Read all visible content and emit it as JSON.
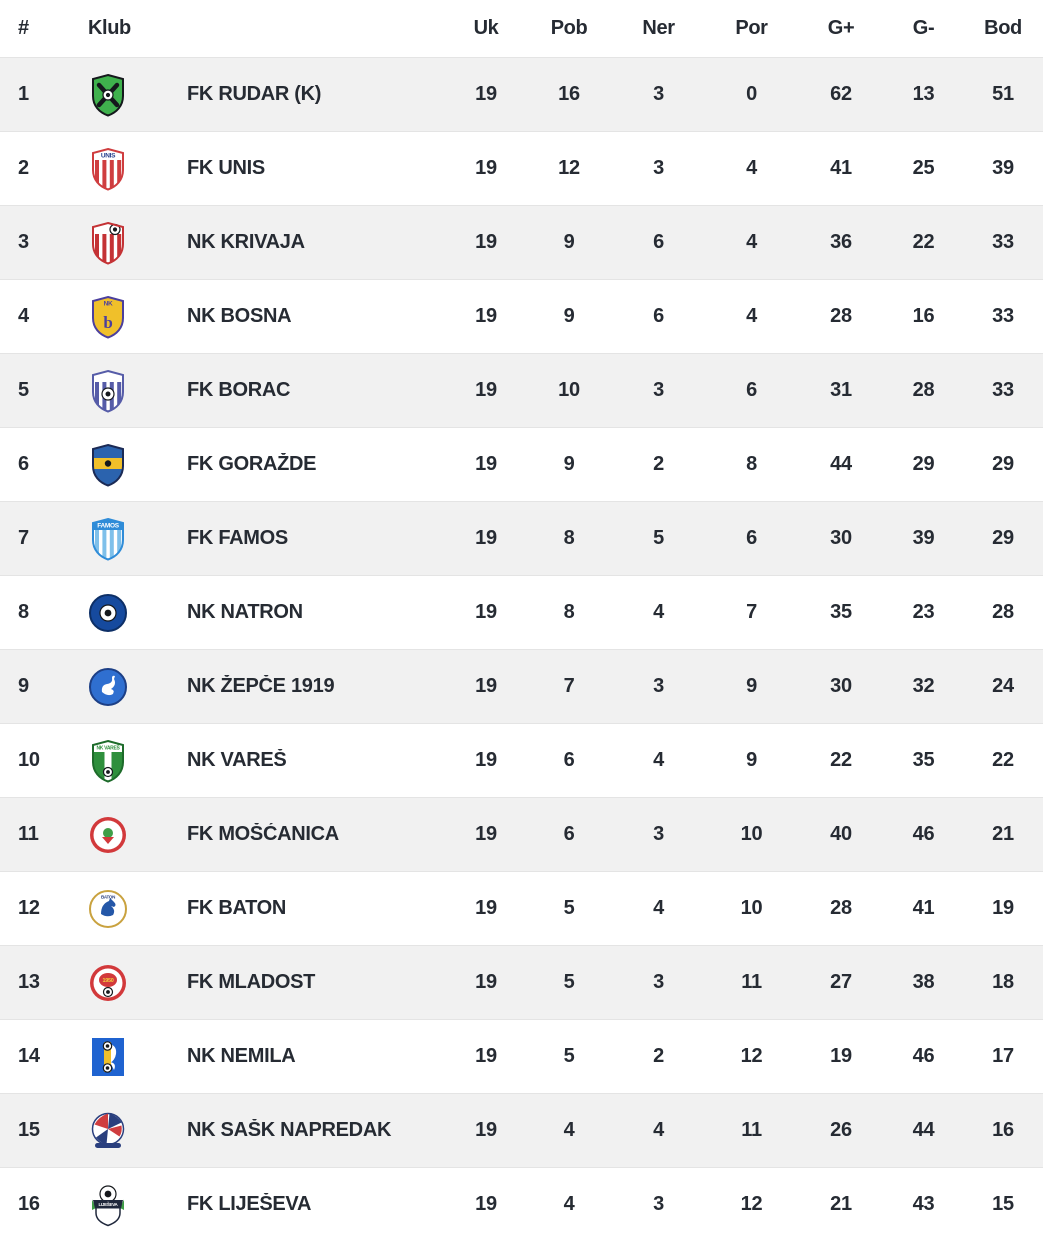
{
  "table": {
    "columns": [
      {
        "key": "rank",
        "label": "#"
      },
      {
        "key": "club",
        "label": "Klub"
      },
      {
        "key": "uk",
        "label": "Uk"
      },
      {
        "key": "pob",
        "label": "Pob"
      },
      {
        "key": "ner",
        "label": "Ner"
      },
      {
        "key": "por",
        "label": "Por"
      },
      {
        "key": "gf",
        "label": "G+"
      },
      {
        "key": "ga",
        "label": "G-"
      },
      {
        "key": "bod",
        "label": "Bod"
      }
    ],
    "rows": [
      {
        "rank": 1,
        "club": "FK RUDAR (K)",
        "uk": 19,
        "pob": 16,
        "ner": 3,
        "por": 0,
        "gf": 62,
        "ga": 13,
        "bod": 51,
        "logo": {
          "kind": "shield",
          "bg": "#3fb14d",
          "border": "#15181c",
          "glyph": "cross",
          "glyph_color": "#15181c"
        }
      },
      {
        "rank": 2,
        "club": "FK UNIS",
        "uk": 19,
        "pob": 12,
        "ner": 3,
        "por": 4,
        "gf": 41,
        "ga": 25,
        "bod": 39,
        "logo": {
          "kind": "shield",
          "bg": "#ffffff",
          "border": "#cf3d3f",
          "stripes": "#cf3d3f",
          "band": "#ffffff",
          "label": "UNIS",
          "label_color": "#27408e"
        }
      },
      {
        "rank": 3,
        "club": "NK KRIVAJA",
        "uk": 19,
        "pob": 9,
        "ner": 6,
        "por": 4,
        "gf": 36,
        "ga": 22,
        "bod": 33,
        "logo": {
          "kind": "shield",
          "bg": "#ffffff",
          "border": "#c43235",
          "stripes": "#c43235",
          "band": "#ffffff",
          "ball": "top"
        }
      },
      {
        "rank": 4,
        "club": "NK BOSNA",
        "uk": 19,
        "pob": 9,
        "ner": 6,
        "por": 4,
        "gf": 28,
        "ga": 16,
        "bod": 33,
        "logo": {
          "kind": "shield",
          "bg": "#f0c02a",
          "border": "#4b3f9e",
          "label": "NK",
          "label_color": "#4b3f9e",
          "letter": "b",
          "letter_color": "#4b3f9e"
        }
      },
      {
        "rank": 5,
        "club": "FK BORAC",
        "uk": 19,
        "pob": 10,
        "ner": 3,
        "por": 6,
        "gf": 31,
        "ga": 28,
        "bod": 33,
        "logo": {
          "kind": "shield",
          "bg": "#ffffff",
          "border": "#565ca8",
          "stripes": "#565ca8",
          "band": "#ffffff",
          "ball": "center"
        }
      },
      {
        "rank": 6,
        "club": "FK GORAŽDE",
        "uk": 19,
        "pob": 9,
        "ner": 2,
        "por": 8,
        "gf": 44,
        "ga": 29,
        "bod": 29,
        "logo": {
          "kind": "shield",
          "bg": "#2b63ae",
          "border": "#1b2a55",
          "midband": "#f0c02a"
        }
      },
      {
        "rank": 7,
        "club": "FK FAMOS",
        "uk": 19,
        "pob": 8,
        "ner": 5,
        "por": 6,
        "gf": 30,
        "ga": 39,
        "bod": 29,
        "logo": {
          "kind": "shield",
          "bg": "#ffffff",
          "border": "#2f8cd8",
          "stripes": "#7fc0ea",
          "band": "#2f8cd8",
          "label": "FAMOS",
          "label_color": "#ffffff"
        }
      },
      {
        "rank": 8,
        "club": "NK NATRON",
        "uk": 19,
        "pob": 8,
        "ner": 4,
        "por": 7,
        "gf": 35,
        "ga": 23,
        "bod": 28,
        "logo": {
          "kind": "circle",
          "bg": "#164a9e",
          "border": "#0d2f66",
          "glyph": "ball"
        }
      },
      {
        "rank": 9,
        "club": "NK ŽEPČE 1919",
        "uk": 19,
        "pob": 7,
        "ner": 3,
        "por": 9,
        "gf": 30,
        "ga": 32,
        "bod": 24,
        "logo": {
          "kind": "circle",
          "bg": "#2f6fd0",
          "border": "#1c3f86",
          "glyph": "swan"
        }
      },
      {
        "rank": 10,
        "club": "NK VAREŠ",
        "uk": 19,
        "pob": 6,
        "ner": 4,
        "por": 9,
        "gf": 22,
        "ga": 35,
        "bod": 22,
        "logo": {
          "kind": "shield",
          "bg": "#2e8f3c",
          "border": "#1d6b2a",
          "band": "#ffffff",
          "label": "NK VAREŠ",
          "label_color": "#2e8f3c",
          "label_size": 5,
          "center_stripe": "#ffffff",
          "ball": "bottom"
        }
      },
      {
        "rank": 11,
        "club": "FK MOŠĆANICA",
        "uk": 19,
        "pob": 6,
        "ner": 3,
        "por": 10,
        "gf": 40,
        "ga": 46,
        "bod": 21,
        "logo": {
          "kind": "circle",
          "bg": "#d2393b",
          "ring": "#d2393b",
          "inner": "#ffffff",
          "glyph": "crest2",
          "glyph_color": "#3f9e47"
        }
      },
      {
        "rank": 12,
        "club": "FK BATON",
        "uk": 19,
        "pob": 5,
        "ner": 4,
        "por": 10,
        "gf": 28,
        "ga": 41,
        "bod": 19,
        "logo": {
          "kind": "circle",
          "bg": "#ffffff",
          "border": "#c9a23f",
          "glyph": "knight",
          "glyph_color": "#2457a8",
          "label": "BATON",
          "label_color": "#2a3f7e"
        }
      },
      {
        "rank": 13,
        "club": "FK MLADOST",
        "uk": 19,
        "pob": 5,
        "ner": 3,
        "por": 11,
        "gf": 27,
        "ga": 38,
        "bod": 18,
        "logo": {
          "kind": "circle",
          "bg": "#d2393b",
          "ring": "#d2393b",
          "inner": "#ffffff",
          "glyph": "oval",
          "glyph_color": "#f4d03f",
          "glyph_text": "1950"
        }
      },
      {
        "rank": 14,
        "club": "NK NEMILA",
        "uk": 19,
        "pob": 5,
        "ner": 2,
        "por": 12,
        "gf": 19,
        "ga": 46,
        "bod": 17,
        "logo": {
          "kind": "square",
          "bg": "#1f63d0",
          "accent": "#f0c02a"
        }
      },
      {
        "rank": 15,
        "club": "NK SAŠK NAPREDAK",
        "uk": 19,
        "pob": 4,
        "ner": 4,
        "por": 11,
        "gf": 26,
        "ga": 44,
        "bod": 16,
        "logo": {
          "kind": "ball",
          "c1": "#cf3d3f",
          "c2": "#2a3f7e"
        }
      },
      {
        "rank": 16,
        "club": "FK LIJEŠEVA",
        "uk": 19,
        "pob": 4,
        "ner": 3,
        "por": 12,
        "gf": 21,
        "ga": 43,
        "bod": 15,
        "logo": {
          "kind": "crest",
          "border": "#20283c",
          "accent": "#3f9e47",
          "label": "LIJEŠEVA"
        }
      }
    ]
  },
  "colors": {
    "row_stripe": "#f1f1f1",
    "divider": "#e4e4e4",
    "text": "#262b33"
  }
}
